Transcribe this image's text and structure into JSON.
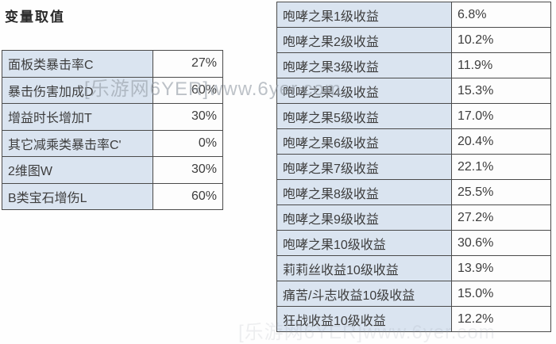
{
  "page": {
    "title": "变量取值"
  },
  "watermark": {
    "text": "[乐游网6YER]www.6yer.com",
    "faint_text": "[乐游网6YER]www.6yer.com"
  },
  "variables_table": {
    "rows": [
      {
        "label": "面板类暴击率C",
        "value": "27%"
      },
      {
        "label": "暴击伤害加成D",
        "value": "60%"
      },
      {
        "label": "增益时长增加T",
        "value": "30%"
      },
      {
        "label": "其它减乘类暴击率C'",
        "value": "0%"
      },
      {
        "label": "2维图W",
        "value": "30%"
      },
      {
        "label": "B类宝石增伤L",
        "value": "60%"
      }
    ]
  },
  "gains_table": {
    "rows": [
      {
        "label": "咆哮之果1级收益",
        "value": "6.8%"
      },
      {
        "label": "咆哮之果2级收益",
        "value": "10.2%"
      },
      {
        "label": "咆哮之果3级收益",
        "value": "11.9%"
      },
      {
        "label": "咆哮之果4级收益",
        "value": "15.3%"
      },
      {
        "label": "咆哮之果5级收益",
        "value": "17.0%"
      },
      {
        "label": "咆哮之果6级收益",
        "value": "20.4%"
      },
      {
        "label": "咆哮之果7级收益",
        "value": "22.1%"
      },
      {
        "label": "咆哮之果8级收益",
        "value": "25.5%"
      },
      {
        "label": "咆哮之果9级收益",
        "value": "27.2%"
      },
      {
        "label": "咆哮之果10级收益",
        "value": "30.6%"
      },
      {
        "label": "莉莉丝收益10级收益",
        "value": "13.9%"
      },
      {
        "label": "痛苦/斗志收益10级收益",
        "value": "15.0%"
      },
      {
        "label": "狂战收益10级收益",
        "value": "12.2%"
      }
    ]
  },
  "colors": {
    "label_cell_bg": "#dae4f0",
    "value_cell_bg": "#fdfdfd",
    "border": "#4a4a4a",
    "text": "#3d3d3d",
    "title_text": "#2a2a2a",
    "watermark": "#949ca7"
  }
}
